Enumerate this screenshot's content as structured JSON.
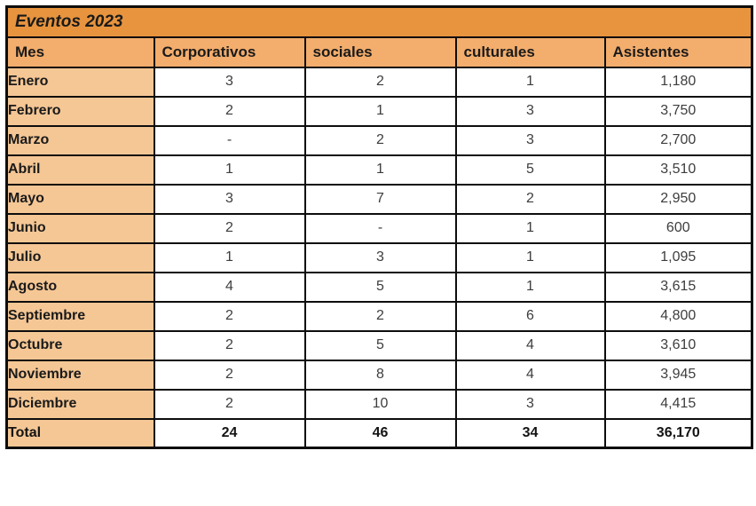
{
  "table": {
    "title": "Eventos 2023",
    "columns": [
      "Mes",
      "Corporativos",
      "sociales",
      "culturales",
      "Asistentes"
    ],
    "rows": [
      {
        "mes": "Enero",
        "corporativos": "3",
        "sociales": "2",
        "culturales": "1",
        "asistentes": "1,180"
      },
      {
        "mes": "Febrero",
        "corporativos": "2",
        "sociales": "1",
        "culturales": "3",
        "asistentes": "3,750"
      },
      {
        "mes": "Marzo",
        "corporativos": "-",
        "sociales": "2",
        "culturales": "3",
        "asistentes": "2,700"
      },
      {
        "mes": "Abril",
        "corporativos": "1",
        "sociales": "1",
        "culturales": "5",
        "asistentes": "3,510"
      },
      {
        "mes": "Mayo",
        "corporativos": "3",
        "sociales": "7",
        "culturales": "2",
        "asistentes": "2,950"
      },
      {
        "mes": "Junio",
        "corporativos": "2",
        "sociales": "-",
        "culturales": "1",
        "asistentes": "600"
      },
      {
        "mes": "Julio",
        "corporativos": "1",
        "sociales": "3",
        "culturales": "1",
        "asistentes": "1,095"
      },
      {
        "mes": "Agosto",
        "corporativos": "4",
        "sociales": "5",
        "culturales": "1",
        "asistentes": "3,615"
      },
      {
        "mes": "Septiembre",
        "corporativos": "2",
        "sociales": "2",
        "culturales": "6",
        "asistentes": "4,800"
      },
      {
        "mes": "Octubre",
        "corporativos": "2",
        "sociales": "5",
        "culturales": "4",
        "asistentes": "3,610"
      },
      {
        "mes": "Noviembre",
        "corporativos": "2",
        "sociales": "8",
        "culturales": "4",
        "asistentes": "3,945"
      },
      {
        "mes": "Diciembre",
        "corporativos": "2",
        "sociales": "10",
        "culturales": "3",
        "asistentes": "4,415"
      }
    ],
    "total": {
      "mes": "Total",
      "corporativos": "24",
      "sociales": "46",
      "culturales": "34",
      "asistentes": "36,170"
    },
    "colors": {
      "title_bg": "#e8943e",
      "header_bg": "#f3ad6c",
      "month_bg": "#f5c795",
      "border": "#0d0d0d"
    }
  }
}
